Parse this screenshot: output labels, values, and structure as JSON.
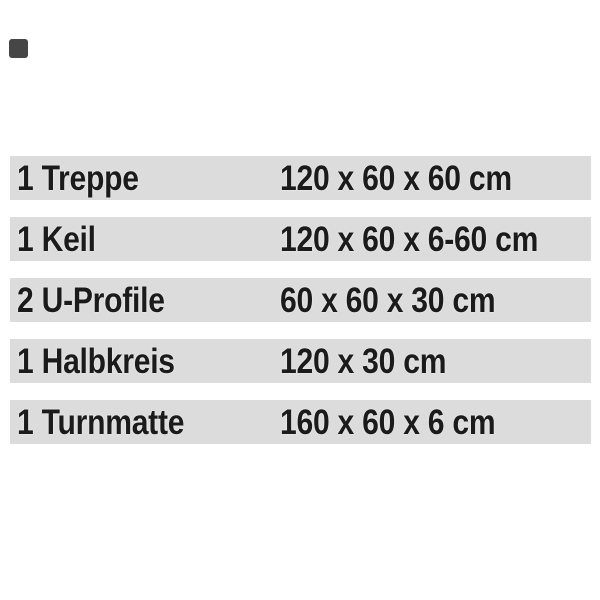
{
  "page": {
    "background": "#ffffff"
  },
  "corner_marker": {
    "color": "#464646"
  },
  "spec_table": {
    "row_background": "#dcdcdc",
    "text_color": "#1b1b1b",
    "rows": [
      {
        "item": "1 Treppe",
        "dimensions": "120 x 60 x 60 cm"
      },
      {
        "item": "1 Keil",
        "dimensions": "120 x 60 x 6-60 cm"
      },
      {
        "item": "2 U-Profile",
        "dimensions": "60 x 60 x 30 cm"
      },
      {
        "item": "1 Halbkreis",
        "dimensions": "120 x 30 cm"
      },
      {
        "item": "1 Turnmatte",
        "dimensions": "160 x 60 x 6 cm"
      }
    ]
  }
}
